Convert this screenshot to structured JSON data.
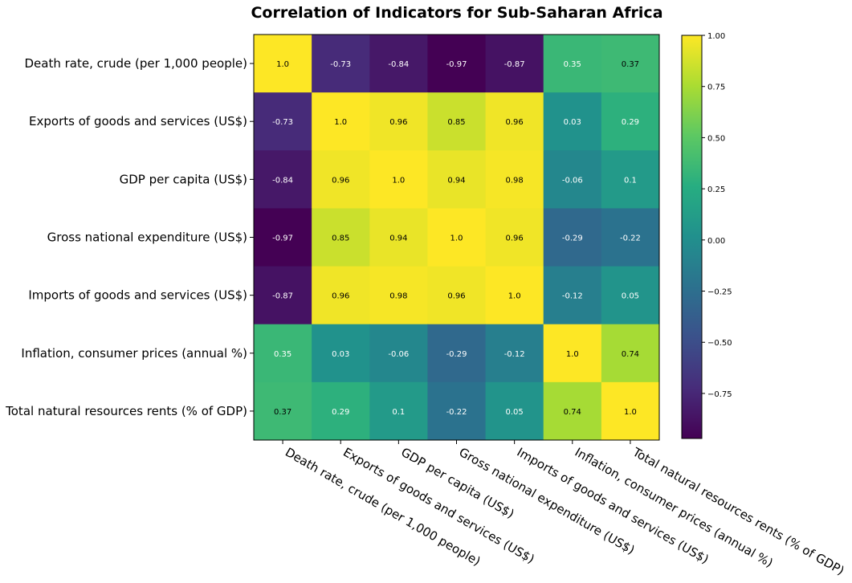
{
  "chart_data": {
    "type": "heatmap",
    "title": "Correlation of Indicators for Sub-Saharan Africa",
    "row_labels": [
      "Death rate, crude (per 1,000 people)",
      "Exports of goods and services (US$)",
      "GDP per capita (US$)",
      "Gross national expenditure (US$)",
      "Imports of goods and services (US$)",
      "Inflation, consumer prices (annual %)",
      "Total natural resources rents (% of GDP)"
    ],
    "col_labels": [
      "Death rate, crude (per 1,000 people)",
      "Exports of goods and services (US$)",
      "GDP per capita (US$)",
      "Gross national expenditure (US$)",
      "Imports of goods and services (US$)",
      "Inflation, consumer prices (annual %)",
      "Total natural resources rents (% of GDP)"
    ],
    "values": [
      [
        1.0,
        -0.73,
        -0.84,
        -0.97,
        -0.87,
        0.35,
        0.37
      ],
      [
        -0.73,
        1.0,
        0.96,
        0.85,
        0.96,
        0.03,
        0.29
      ],
      [
        -0.84,
        0.96,
        1.0,
        0.94,
        0.98,
        -0.06,
        0.1
      ],
      [
        -0.97,
        0.85,
        0.94,
        1.0,
        0.96,
        -0.29,
        -0.22
      ],
      [
        -0.87,
        0.96,
        0.98,
        0.96,
        1.0,
        -0.12,
        0.05
      ],
      [
        0.35,
        0.03,
        -0.06,
        -0.29,
        -0.12,
        1.0,
        0.74
      ],
      [
        0.37,
        0.29,
        0.1,
        -0.22,
        0.05,
        0.74,
        1.0
      ]
    ],
    "cell_labels": [
      [
        "1.0",
        "-0.73",
        "-0.84",
        "-0.97",
        "-0.87",
        "0.35",
        "0.37"
      ],
      [
        "-0.73",
        "1.0",
        "0.96",
        "0.85",
        "0.96",
        "0.03",
        "0.29"
      ],
      [
        "-0.84",
        "0.96",
        "1.0",
        "0.94",
        "0.98",
        "-0.06",
        "0.1"
      ],
      [
        "-0.97",
        "0.85",
        "0.94",
        "1.0",
        "0.96",
        "-0.29",
        "-0.22"
      ],
      [
        "-0.87",
        "0.96",
        "0.98",
        "0.96",
        "1.0",
        "-0.12",
        "0.05"
      ],
      [
        "0.35",
        "0.03",
        "-0.06",
        "-0.29",
        "-0.12",
        "1.0",
        "0.74"
      ],
      [
        "0.37",
        "0.29",
        "0.1",
        "-0.22",
        "0.05",
        "0.74",
        "1.0"
      ]
    ],
    "colormap": "viridis",
    "vmin": -0.97,
    "vmax": 1.0,
    "colorbar_ticks": [
      1.0,
      0.75,
      0.5,
      0.25,
      0.0,
      -0.25,
      -0.5,
      -0.75
    ],
    "colorbar_tick_labels": [
      "1.00",
      "0.75",
      "0.50",
      "0.25",
      "0.00",
      "−0.25",
      "−0.50",
      "−0.75"
    ],
    "colorbar_position": "right",
    "grid": false
  }
}
